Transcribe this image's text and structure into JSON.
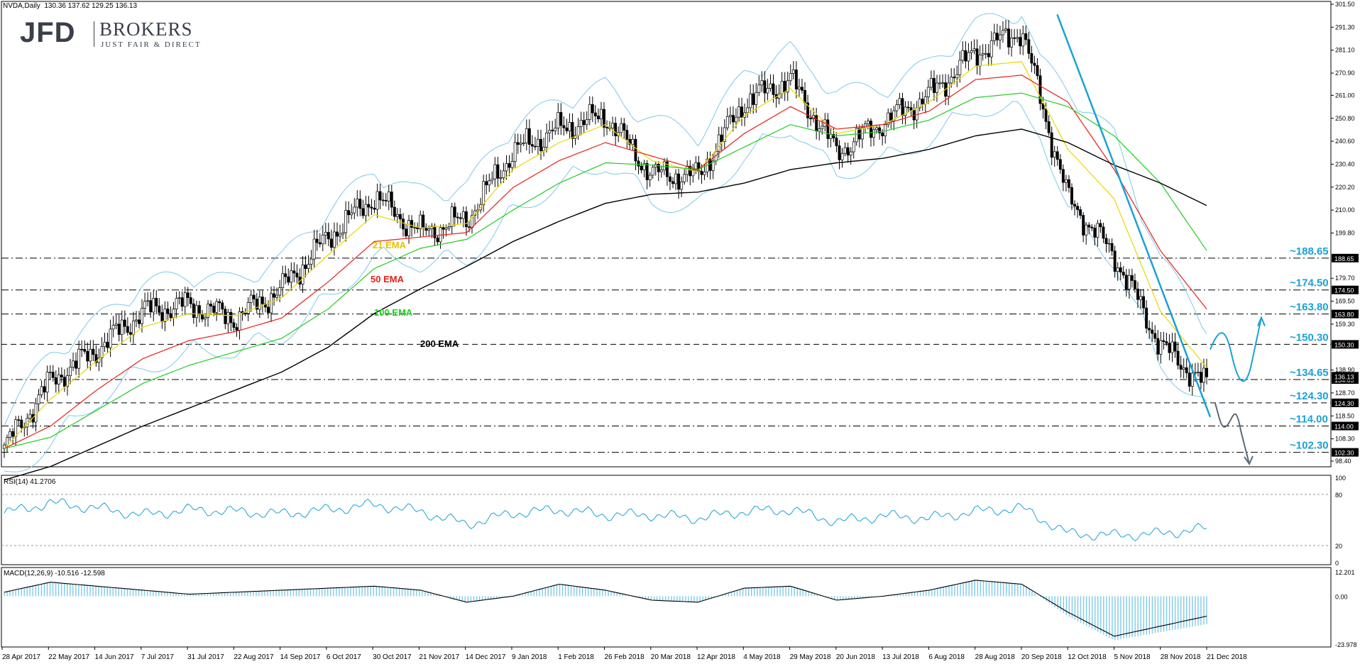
{
  "header": {
    "symbol": "NVDA,Daily",
    "ohlc": "130.36 137.62 129.25 136.13"
  },
  "logo": {
    "brand": "JFD",
    "name": "BROKERS",
    "tagline": "JUST FAIR & DIRECT"
  },
  "colors": {
    "ema21": "#e8d800",
    "ema50": "#e8201a",
    "ema100": "#22cc22",
    "ema200": "#000000",
    "bollinger": "#7fc8ea",
    "accent": "#1ba1d5",
    "projection": "#5b6b7a"
  },
  "chart_data": [
    {
      "type": "candlestick",
      "x_ticks": [
        "28 Apr 2017",
        "22 May 2017",
        "14 Jun 2017",
        "7 Jul 2017",
        "31 Jul 2017",
        "22 Aug 2017",
        "14 Sep 2017",
        "6 Oct 2017",
        "30 Oct 2017",
        "21 Nov 2017",
        "14 Dec 2017",
        "9 Jan 2018",
        "1 Feb 2018",
        "26 Feb 2018",
        "20 Mar 2018",
        "12 Apr 2018",
        "4 May 2018",
        "29 May 2018",
        "20 Jun 2018",
        "13 Jul 2018",
        "6 Aug 2018",
        "28 Aug 2018",
        "20 Sep 2018",
        "12 Oct 2018",
        "5 Nov 2018",
        "28 Nov 2018",
        "21 Dec 2018"
      ],
      "y_ticks": [
        "301.50",
        "291.30",
        "281.10",
        "270.90",
        "261.00",
        "250.80",
        "240.60",
        "230.40",
        "220.20",
        "210.00",
        "199.80",
        "179.70",
        "169.50",
        "159.30",
        "138.90",
        "128.70",
        "118.50",
        "108.30",
        "98.40"
      ],
      "ylim": [
        98.4,
        301.5
      ],
      "price_path_x": [
        0,
        1,
        2,
        3,
        4,
        5,
        6,
        7,
        8,
        9,
        10,
        11,
        12,
        13,
        14,
        15,
        16,
        17,
        18,
        19,
        20,
        21,
        22,
        23,
        24,
        25,
        26
      ],
      "price_path_close": [
        104,
        134,
        148,
        165,
        168,
        162,
        175,
        198,
        216,
        200,
        206,
        236,
        246,
        252,
        226,
        225,
        258,
        268,
        236,
        249,
        261,
        280,
        290,
        215,
        190,
        150,
        132
      ],
      "series": [
        {
          "name": "21 EMA",
          "values": [
            104,
            126,
            143,
            158,
            164,
            163,
            171,
            190,
            208,
            202,
            204,
            228,
            240,
            248,
            232,
            227,
            252,
            264,
            244,
            248,
            258,
            274,
            276,
            237,
            215,
            165,
            140
          ]
        },
        {
          "name": "50 EMA",
          "values": [
            104,
            114,
            130,
            144,
            152,
            156,
            162,
            178,
            196,
            198,
            200,
            220,
            232,
            240,
            234,
            228,
            244,
            256,
            246,
            248,
            254,
            268,
            270,
            258,
            228,
            192,
            166
          ]
        },
        {
          "name": "100 EMA",
          "values": [
            104,
            109,
            121,
            133,
            141,
            147,
            153,
            166,
            184,
            193,
            197,
            210,
            222,
            231,
            230,
            228,
            238,
            248,
            243,
            245,
            250,
            260,
            262,
            256,
            243,
            222,
            192
          ]
        },
        {
          "name": "200 EMA",
          "values": [
            90,
            96,
            105,
            114,
            122,
            130,
            138,
            149,
            164,
            175,
            185,
            196,
            205,
            213,
            217,
            218,
            222,
            228,
            231,
            233,
            237,
            243,
            246,
            240,
            230,
            222,
            212
          ]
        }
      ],
      "levels": [
        {
          "label": "~188.65",
          "box": "188.65",
          "value": 188.65,
          "style": "dashdot"
        },
        {
          "label": "~174.50",
          "box": "174.50",
          "value": 174.5,
          "style": "dashdot"
        },
        {
          "label": "~163.80",
          "box": "163.80",
          "value": 163.8,
          "style": "dashdot"
        },
        {
          "label": "~150.30",
          "box": "150.30",
          "value": 150.3,
          "style": "dash"
        },
        {
          "label": "~134.65",
          "box": "134.65",
          "value": 134.65,
          "style": "dashdot"
        },
        {
          "label": "~124.30",
          "box": "124.30",
          "value": 124.3,
          "style": "dash"
        },
        {
          "label": "~114.00",
          "box": "114.00",
          "value": 114.0,
          "style": "dashdot"
        },
        {
          "label": "~102.30",
          "box": "102.30",
          "value": 102.3,
          "style": "dashdot"
        }
      ],
      "last_price_box": "136.13",
      "trendline": {
        "from": [
          22,
          297
        ],
        "to": [
          26,
          118
        ]
      }
    },
    {
      "type": "line",
      "title": "RSI(14) 41.2706",
      "ylim": [
        0,
        100
      ],
      "y_ticks": [
        "100",
        "80",
        "20",
        "0"
      ],
      "levels": [
        80,
        20
      ],
      "values": [
        58,
        70,
        64,
        56,
        62,
        60,
        57,
        62,
        68,
        60,
        45,
        58,
        62,
        56,
        56,
        52,
        60,
        62,
        48,
        55,
        52,
        60,
        64,
        34,
        32,
        34,
        40
      ]
    },
    {
      "type": "bar+line",
      "title": "MACD(12,26,9) -10.516 -12.598",
      "ylim": [
        -23.978,
        12.201
      ],
      "y_ticks": [
        "12.201",
        "0.00",
        "-23.978"
      ],
      "macd_line": [
        2,
        7,
        5,
        3,
        1,
        2,
        3,
        4,
        5,
        3,
        -3,
        0,
        6,
        3,
        -2,
        -3,
        4,
        5,
        -2,
        0,
        3,
        8,
        6,
        -8,
        -20,
        -15,
        -10
      ],
      "histogram": [
        2,
        7,
        5,
        3,
        1,
        2,
        3,
        4,
        5,
        3,
        -3,
        0,
        6,
        3,
        -2,
        -3,
        4,
        5,
        -2,
        0,
        3,
        8,
        6,
        -10,
        -22,
        -18,
        -14
      ]
    }
  ]
}
